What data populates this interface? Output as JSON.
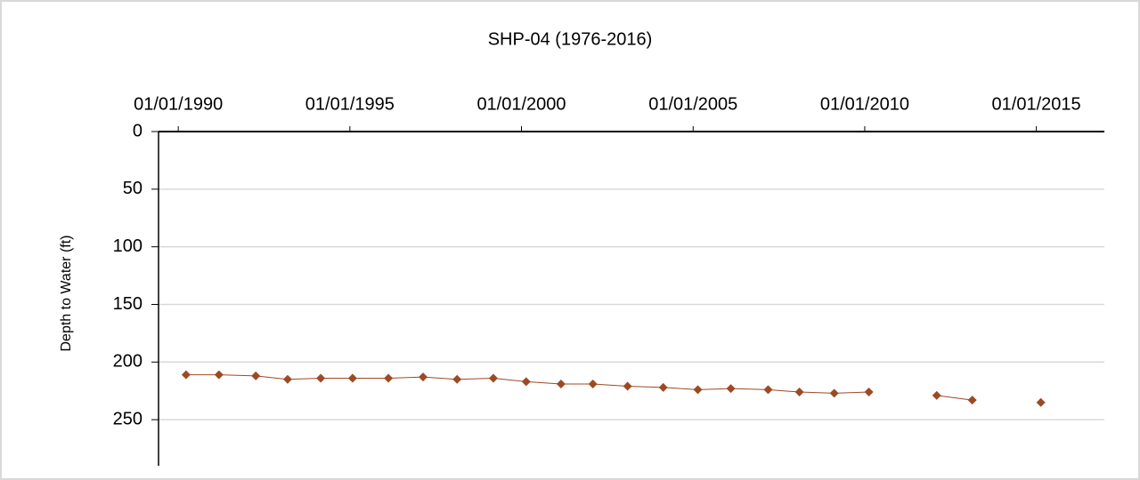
{
  "chart_data": {
    "type": "line",
    "title": "SHP-04 (1976-2016)",
    "y_label": "Depth to Water (ft)",
    "x": [
      "1990-03-25",
      "1991-03-10",
      "1992-04-05",
      "1993-03-10",
      "1994-02-25",
      "1995-01-30",
      "1996-02-15",
      "1997-02-18",
      "1998-02-15",
      "1999-03-08",
      "2000-02-20",
      "2001-02-25",
      "2002-01-30",
      "2003-02-03",
      "2004-02-18",
      "2005-02-20",
      "2006-02-06",
      "2007-03-10",
      "2008-02-06",
      "2009-02-10",
      "2010-02-14",
      null,
      "2012-02-06",
      "2013-02-18",
      null,
      "2015-02-18"
    ],
    "series": [
      {
        "name": "SHP-04",
        "color": "#9c4a25",
        "values": [
          211,
          211,
          212,
          215,
          214,
          214,
          214,
          213,
          215,
          214,
          217,
          219,
          219,
          221,
          222,
          224,
          223,
          224,
          226,
          227,
          226,
          null,
          229,
          233,
          null,
          235
        ]
      }
    ],
    "xlim": [
      "1989-06-05",
      "2016-12-25"
    ],
    "xticks": [
      {
        "value": "1990-01-01",
        "label": "01/01/1990"
      },
      {
        "value": "1995-01-01",
        "label": "01/01/1995"
      },
      {
        "value": "2000-01-01",
        "label": "01/01/2000"
      },
      {
        "value": "2005-01-01",
        "label": "01/01/2005"
      },
      {
        "value": "2010-01-01",
        "label": "01/01/2010"
      },
      {
        "value": "2015-01-01",
        "label": "01/01/2015"
      }
    ],
    "ylim": [
      0,
      290
    ],
    "yticks": [
      0,
      50,
      100,
      150,
      200,
      250
    ],
    "y_inverted": true,
    "grid": true
  }
}
